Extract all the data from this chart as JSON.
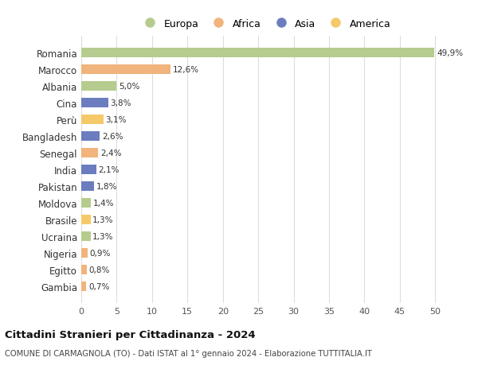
{
  "countries": [
    "Romania",
    "Marocco",
    "Albania",
    "Cina",
    "Perù",
    "Bangladesh",
    "Senegal",
    "India",
    "Pakistan",
    "Moldova",
    "Brasile",
    "Ucraina",
    "Nigeria",
    "Egitto",
    "Gambia"
  ],
  "values": [
    49.9,
    12.6,
    5.0,
    3.8,
    3.1,
    2.6,
    2.4,
    2.1,
    1.8,
    1.4,
    1.3,
    1.3,
    0.9,
    0.8,
    0.7
  ],
  "labels": [
    "49,9%",
    "12,6%",
    "5,0%",
    "3,8%",
    "3,1%",
    "2,6%",
    "2,4%",
    "2,1%",
    "1,8%",
    "1,4%",
    "1,3%",
    "1,3%",
    "0,9%",
    "0,8%",
    "0,7%"
  ],
  "colors": [
    "#b5cc8e",
    "#f0b47c",
    "#b5cc8e",
    "#6b7dbf",
    "#f5c96a",
    "#6b7dbf",
    "#f0b47c",
    "#6b7dbf",
    "#6b7dbf",
    "#b5cc8e",
    "#f5c96a",
    "#b5cc8e",
    "#f0b47c",
    "#f0b47c",
    "#f0b47c"
  ],
  "legend_labels": [
    "Europa",
    "Africa",
    "Asia",
    "America"
  ],
  "legend_colors": [
    "#b5cc8e",
    "#f0b47c",
    "#6b7dbf",
    "#f5c96a"
  ],
  "title": "Cittadini Stranieri per Cittadinanza - 2024",
  "subtitle": "COMUNE DI CARMAGNOLA (TO) - Dati ISTAT al 1° gennaio 2024 - Elaborazione TUTTITALIA.IT",
  "xlim": [
    0,
    52
  ],
  "xticks": [
    0,
    5,
    10,
    15,
    20,
    25,
    30,
    35,
    40,
    45,
    50
  ],
  "background_color": "#ffffff",
  "grid_color": "#dddddd"
}
